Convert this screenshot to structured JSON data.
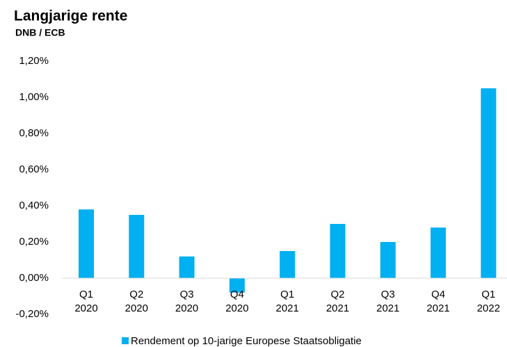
{
  "chart_data": {
    "type": "bar",
    "title": "Langjarige rente",
    "subtitle": "DNB / ECB",
    "categories": [
      "Q1 2020",
      "Q2 2020",
      "Q3 2020",
      "Q4 2020",
      "Q1 2021",
      "Q2 2021",
      "Q3 2021",
      "Q4 2021",
      "Q1 2022"
    ],
    "series": [
      {
        "name": "Rendement op 10-jarige Europese Staatsobligatie",
        "color": "#00b0f0",
        "values": [
          0.38,
          0.35,
          0.12,
          -0.08,
          0.15,
          0.3,
          0.2,
          0.28,
          1.05
        ]
      }
    ],
    "ylim": [
      -0.2,
      1.2
    ],
    "yticks": [
      {
        "value": -0.2,
        "label": "-0,20%"
      },
      {
        "value": 0,
        "label": "0,00%"
      },
      {
        "value": 0.2,
        "label": "0,20%"
      },
      {
        "value": 0.4,
        "label": "0,40%"
      },
      {
        "value": 0.6,
        "label": "0,60%"
      },
      {
        "value": 0.8,
        "label": "0,80%"
      },
      {
        "value": 1.0,
        "label": "1,00%"
      },
      {
        "value": 1.2,
        "label": "1,20%"
      }
    ],
    "grid": false,
    "legend": "bottom"
  }
}
